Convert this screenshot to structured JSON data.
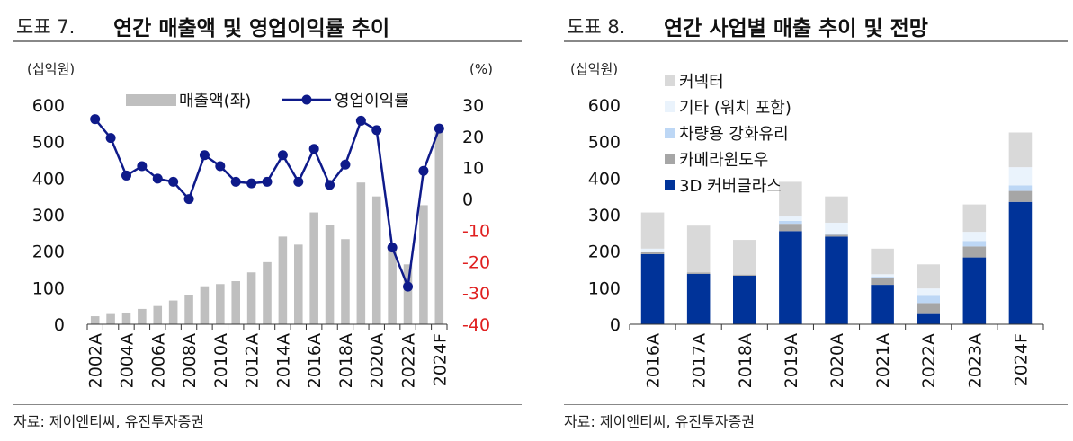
{
  "left": {
    "figure_no": "도표 7.",
    "title": "연간 매출액 및 영업이익률 추이",
    "source": "자료: 제이앤티씨, 유진투자증권",
    "chart_data": {
      "type": "bar+line",
      "categories": [
        "2002A",
        "2003A",
        "2004A",
        "2005A",
        "2006A",
        "2007A",
        "2008A",
        "2009A",
        "2010A",
        "2011A",
        "2012A",
        "2013A",
        "2014A",
        "2015A",
        "2016A",
        "2017A",
        "2018A",
        "2019A",
        "2020A",
        "2021A",
        "2022A",
        "2023A",
        "2024F"
      ],
      "x_tick_labels": [
        "2002A",
        "2004A",
        "2006A",
        "2008A",
        "2010A",
        "2012A",
        "2014A",
        "2016A",
        "2018A",
        "2020A",
        "2022A",
        "2024F"
      ],
      "series": [
        {
          "name": "매출액(좌)",
          "kind": "bar",
          "axis": "left",
          "color": "#bfbfbf",
          "values": [
            22,
            28,
            32,
            42,
            50,
            65,
            80,
            104,
            110,
            118,
            142,
            170,
            240,
            218,
            306,
            272,
            233,
            388,
            350,
            206,
            164,
            326,
            525
          ]
        },
        {
          "name": "영업이익률",
          "kind": "line",
          "axis": "right",
          "color": "#0e1a8a",
          "values": [
            25.5,
            19.5,
            7.5,
            10.5,
            6.5,
            5.5,
            0,
            14,
            10.5,
            5.5,
            5,
            5.5,
            14,
            5.5,
            16,
            4.5,
            11,
            25,
            22,
            -15.5,
            -28,
            9,
            22.5
          ]
        }
      ],
      "ylabel_left": "(십억원)",
      "ylabel_right": "(%)",
      "ylim_left": [
        0,
        600
      ],
      "yticks_left": [
        0,
        100,
        200,
        300,
        400,
        500,
        600
      ],
      "ylim_right": [
        -40,
        30
      ],
      "yticks_right": [
        -40,
        -30,
        -20,
        -10,
        0,
        10,
        20,
        30
      ],
      "negative_tick_color": "#e02020",
      "legend_position": "top"
    }
  },
  "right": {
    "figure_no": "도표 8.",
    "title": "연간 사업별 매출 추이 및 전망",
    "source": "자료: 제이앤티씨, 유진투자증권",
    "chart_data": {
      "type": "stacked-bar",
      "categories": [
        "2016A",
        "2017A",
        "2018A",
        "2019A",
        "2020A",
        "2021A",
        "2022A",
        "2023A",
        "2024F"
      ],
      "series": [
        {
          "name": "3D 커버글라스",
          "color": "#003399",
          "values": [
            192,
            138,
            133,
            255,
            240,
            108,
            28,
            183,
            335
          ]
        },
        {
          "name": "카메라윈도우",
          "color": "#a6a6a6",
          "values": [
            5,
            4,
            3,
            20,
            5,
            18,
            30,
            30,
            30
          ]
        },
        {
          "name": "차량용 강화유리",
          "color": "#bdd7f5",
          "values": [
            0,
            0,
            0,
            8,
            3,
            4,
            20,
            15,
            15
          ]
        },
        {
          "name": "기타 (워치 포함)",
          "color": "#eaf3fc",
          "values": [
            10,
            0,
            0,
            12,
            30,
            7,
            20,
            25,
            50
          ]
        },
        {
          "name": "커넥터",
          "color": "#d9d9d9",
          "values": [
            99,
            128,
            95,
            95,
            72,
            70,
            66,
            75,
            95
          ]
        }
      ],
      "ylabel": "(십억원)",
      "ylim": [
        0,
        600
      ],
      "yticks": [
        0,
        100,
        200,
        300,
        400,
        500,
        600
      ],
      "legend_position": "top-left"
    }
  }
}
